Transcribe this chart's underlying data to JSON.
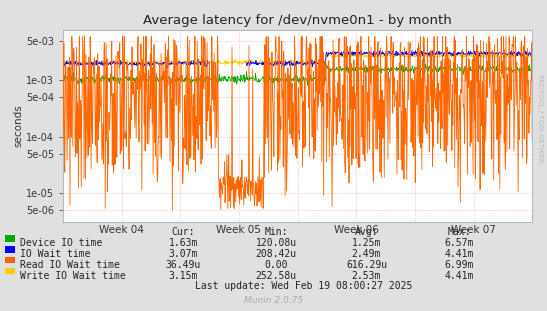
{
  "title": "Average latency for /dev/nvme0n1 - by month",
  "ylabel": "seconds",
  "bg_color": "#e0e0e0",
  "plot_bg_color": "#ffffff",
  "grid_color": "#ffaaaa",
  "week_labels": [
    "Week 04",
    "Week 05",
    "Week 06",
    "Week 07"
  ],
  "ylim_min": 3e-06,
  "ylim_max": 0.008,
  "legend": [
    {
      "label": "Device IO time",
      "color": "#00aa00"
    },
    {
      "label": "IO Wait time",
      "color": "#0000ff"
    },
    {
      "label": "Read IO Wait time",
      "color": "#ff6600"
    },
    {
      "label": "Write IO Wait time",
      "color": "#ffcc00"
    }
  ],
  "table_headers": [
    "Cur:",
    "Min:",
    "Avg:",
    "Max:"
  ],
  "table_rows": [
    [
      "1.63m",
      "120.08u",
      "1.25m",
      "6.57m"
    ],
    [
      "3.07m",
      "208.42u",
      "2.49m",
      "4.41m"
    ],
    [
      "36.49u",
      "0.00",
      "616.29u",
      "6.99m"
    ],
    [
      "3.15m",
      "252.58u",
      "2.53m",
      "4.41m"
    ]
  ],
  "last_update": "Last update: Wed Feb 19 08:00:27 2025",
  "munin_version": "Munin 2.0.75",
  "rrdtool_label": "RRDTOOL / TOBI OETIKER"
}
